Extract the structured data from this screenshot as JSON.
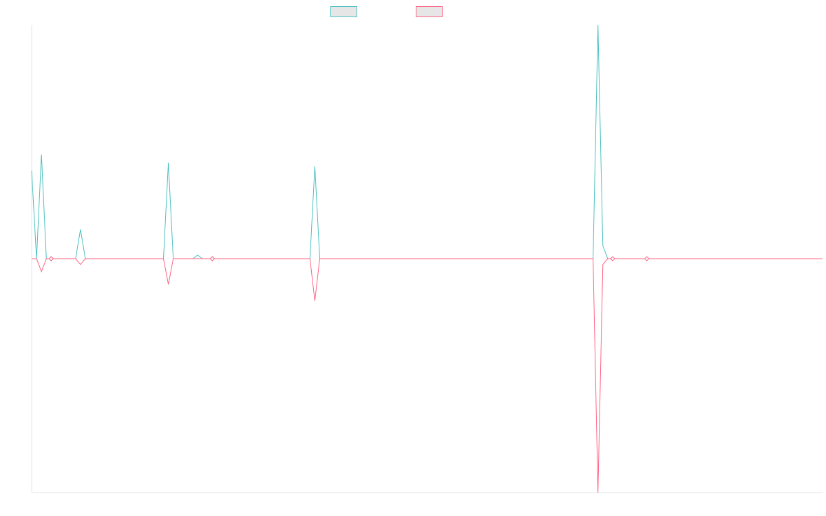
{
  "chart_data": {
    "type": "line",
    "title": "",
    "xlabel": "",
    "ylabel": "",
    "grid": false,
    "legend_position": "top-center",
    "ylim": [
      -100,
      100
    ],
    "x_count": 163,
    "series": [
      {
        "color": "#4bc0c0",
        "fill": "#e6e6e6",
        "points": [
          [
            0,
            37.5
          ],
          [
            1,
            0
          ],
          [
            2,
            44.5
          ],
          [
            3,
            0
          ],
          [
            5,
            0
          ],
          [
            6,
            0
          ],
          [
            7,
            0
          ],
          [
            8,
            0
          ],
          [
            9,
            0
          ],
          [
            10,
            12.5
          ],
          [
            11,
            0
          ],
          [
            27,
            0
          ],
          [
            28,
            41
          ],
          [
            29,
            0
          ],
          [
            33,
            0
          ],
          [
            34,
            1.5
          ],
          [
            35,
            0
          ],
          [
            37,
            0
          ],
          [
            38,
            0
          ],
          [
            39,
            0
          ],
          [
            57,
            0
          ],
          [
            58,
            39.5
          ],
          [
            59,
            0
          ],
          [
            115,
            0
          ],
          [
            116,
            100
          ],
          [
            117,
            5.5
          ],
          [
            118,
            0
          ],
          [
            119,
            0
          ],
          [
            120,
            0
          ],
          [
            126,
            0
          ],
          [
            127,
            0
          ],
          [
            128,
            0
          ],
          [
            162,
            0
          ]
        ]
      },
      {
        "color": "#ff6384",
        "fill": "#e6e6e6",
        "points": [
          [
            0,
            0
          ],
          [
            1,
            0
          ],
          [
            2,
            -5.5
          ],
          [
            3,
            0
          ],
          [
            5,
            0
          ],
          [
            6,
            0
          ],
          [
            7,
            0
          ],
          [
            8,
            0
          ],
          [
            9,
            0
          ],
          [
            10,
            -2.5
          ],
          [
            11,
            0
          ],
          [
            27,
            0
          ],
          [
            28,
            -11
          ],
          [
            29,
            0
          ],
          [
            33,
            0
          ],
          [
            34,
            0
          ],
          [
            35,
            0
          ],
          [
            37,
            0
          ],
          [
            38,
            0
          ],
          [
            39,
            0
          ],
          [
            57,
            0
          ],
          [
            58,
            -18
          ],
          [
            59,
            0
          ],
          [
            115,
            0
          ],
          [
            116,
            -100
          ],
          [
            117,
            -2.5
          ],
          [
            118,
            0
          ],
          [
            119,
            0
          ],
          [
            120,
            0
          ],
          [
            126,
            0
          ],
          [
            127,
            0
          ],
          [
            128,
            0
          ],
          [
            162,
            0
          ]
        ]
      }
    ],
    "markers": [
      {
        "series": 0,
        "x": 4,
        "y": 0
      },
      {
        "series": 1,
        "x": 4,
        "y": 0
      },
      {
        "series": 0,
        "x": 37,
        "y": 0
      },
      {
        "series": 1,
        "x": 37,
        "y": 0
      },
      {
        "series": 1,
        "x": 119,
        "y": 0
      },
      {
        "series": 1,
        "x": 126,
        "y": 0
      }
    ]
  }
}
